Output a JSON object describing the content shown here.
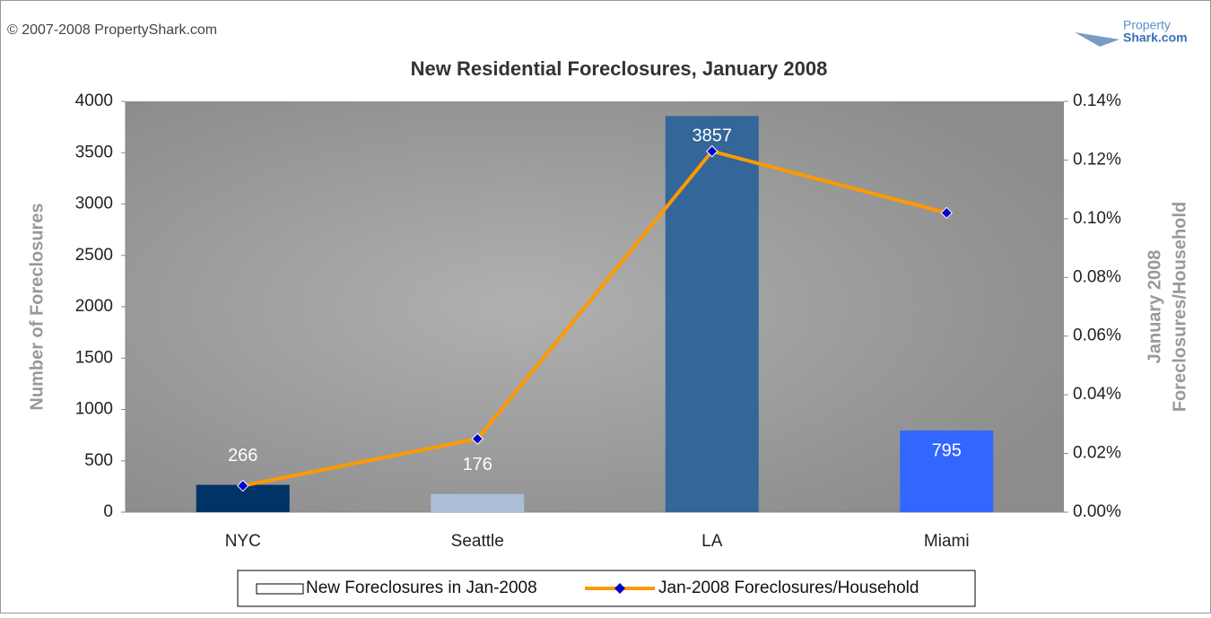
{
  "copyright": "© 2007-2008 PropertyShark.com",
  "logo": {
    "line1": "Property",
    "line2": "Shark.com"
  },
  "chart_data": {
    "type": "bar_line",
    "title": "New Residential Foreclosures, January 2008",
    "y_label": "Number of Foreclosures",
    "y2_label": [
      "January 2008",
      "Foreclosures/Household"
    ],
    "categories": [
      "NYC",
      "Seattle",
      "LA",
      "Miami"
    ],
    "ylim": [
      0,
      4000
    ],
    "yticks": [
      0,
      500,
      1000,
      1500,
      2000,
      2500,
      3000,
      3500,
      4000
    ],
    "y2lim": [
      0,
      0.14
    ],
    "y2ticks": [
      {
        "value": 0,
        "label": "0.00%"
      },
      {
        "value": 0.02,
        "label": "0.02%"
      },
      {
        "value": 0.04,
        "label": "0.04%"
      },
      {
        "value": 0.06,
        "label": "0.06%"
      },
      {
        "value": 0.08,
        "label": "0.08%"
      },
      {
        "value": 0.1,
        "label": "0.10%"
      },
      {
        "value": 0.12,
        "label": "0.12%"
      },
      {
        "value": 0.14,
        "label": "0.14%"
      }
    ],
    "series": [
      {
        "name": "New Foreclosures in Jan-2008",
        "type": "bar",
        "colors": [
          "#003366",
          "#adbfd6",
          "#336699",
          "#3366ff"
        ],
        "values": [
          266,
          176,
          3857,
          795
        ]
      },
      {
        "name": "Jan-2008 Foreclosures/Household",
        "type": "line",
        "axis": "y2",
        "color": "#ff9900",
        "marker_color": "#0000cc",
        "values": [
          0.009,
          0.025,
          0.123,
          0.102
        ]
      }
    ]
  }
}
